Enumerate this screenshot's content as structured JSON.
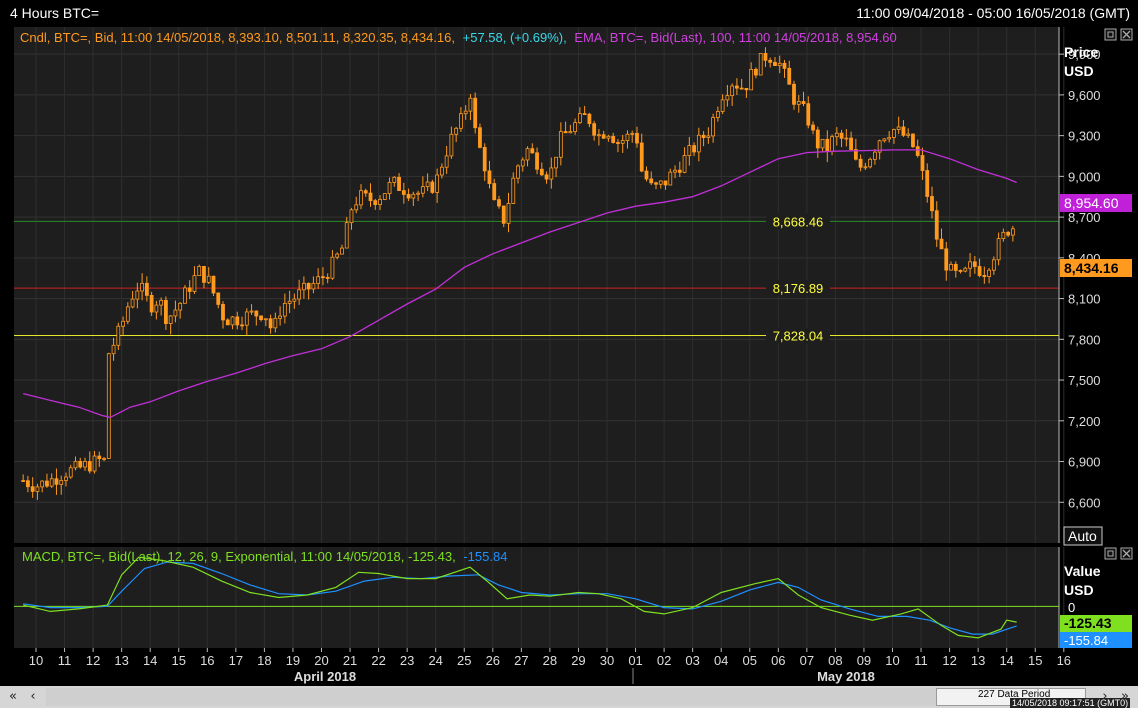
{
  "header": {
    "title": "4 Hours BTC=",
    "range": "11:00 09/04/2018 - 05:00 16/05/2018 (GMT)"
  },
  "price_panel": {
    "legend": {
      "cndl": "Cndl, BTC=, Bid, 11:00 14/05/2018, 8,393.10, 8,501.11, 8,320.35, 8,434.16,",
      "change": "+57.58, (+0.69%),",
      "ema": "EMA, BTC=, Bid(Last),  100, 11:00 14/05/2018, 8,954.60"
    },
    "axis_title": "Price",
    "axis_unit": "USD",
    "auto_button": "Auto",
    "ema_badge": "8,954.60",
    "last_badge": "8,434.16",
    "colors": {
      "candle": "#ff9a1f",
      "ema": "#c030d8",
      "bg": "#1e1e1e",
      "grid": "#3a3a3a"
    }
  },
  "macd_panel": {
    "legend": {
      "text": "MACD, BTC=, Bid(Last),  12, 26, 9, Exponential, 11:00 14/05/2018, -125.43,",
      "signal": "-155.84"
    },
    "axis_title": "Value",
    "axis_unit": "USD",
    "zero_label": "0",
    "macd_badge": "-125.43",
    "signal_badge": "-155.84",
    "colors": {
      "macd": "#7fe020",
      "signal": "#1e90ff"
    }
  },
  "x_axis": {
    "day_labels": [
      "10",
      "11",
      "12",
      "13",
      "14",
      "15",
      "16",
      "17",
      "18",
      "19",
      "20",
      "21",
      "22",
      "23",
      "24",
      "25",
      "26",
      "27",
      "28",
      "29",
      "30",
      "01",
      "02",
      "03",
      "04",
      "05",
      "06",
      "07",
      "08",
      "09",
      "10",
      "11",
      "12",
      "13",
      "14",
      "15",
      "16"
    ],
    "months": [
      "April 2018",
      "May 2018"
    ]
  },
  "scrollbar": {
    "data_period": "227 Data Period",
    "timestamp": "14/05/2018 09:17:51  (GMT0)"
  },
  "chart_data": [
    {
      "type": "candlestick",
      "title": "4 Hours BTC=",
      "ylabel": "Price USD",
      "ylim": [
        6300,
        10100
      ],
      "y_ticks": [
        6600,
        6900,
        7200,
        7500,
        7800,
        8100,
        8400,
        8700,
        9000,
        9300,
        9600,
        9900
      ],
      "y_tick_labels": [
        "6,600",
        "6,900",
        "7,200",
        "7,500",
        "7,800",
        "8,100",
        "8,400",
        "8,700",
        "9,000",
        "9,300",
        "9,600",
        "9,900"
      ],
      "x_dates": [
        "10",
        "11",
        "12",
        "13",
        "14",
        "15",
        "16",
        "17",
        "18",
        "19",
        "20",
        "21",
        "22",
        "23",
        "24",
        "25",
        "26",
        "27",
        "28",
        "29",
        "30",
        "01",
        "02",
        "03",
        "04",
        "05",
        "06",
        "07",
        "08",
        "09",
        "10",
        "11",
        "12",
        "13",
        "14",
        "15",
        "16"
      ],
      "close_path": [
        {
          "d": 9.55,
          "v": 6760
        },
        {
          "d": 10.0,
          "v": 6720
        },
        {
          "d": 10.5,
          "v": 6760
        },
        {
          "d": 11.0,
          "v": 6820
        },
        {
          "d": 11.5,
          "v": 6850
        },
        {
          "d": 12.0,
          "v": 6890
        },
        {
          "d": 12.35,
          "v": 6920
        },
        {
          "d": 12.5,
          "v": 6850
        },
        {
          "d": 12.55,
          "v": 7700
        },
        {
          "d": 12.8,
          "v": 7800
        },
        {
          "d": 13.0,
          "v": 7900
        },
        {
          "d": 13.3,
          "v": 8100
        },
        {
          "d": 13.6,
          "v": 8200
        },
        {
          "d": 14.0,
          "v": 8050
        },
        {
          "d": 14.3,
          "v": 8100
        },
        {
          "d": 14.6,
          "v": 7950
        },
        {
          "d": 15.0,
          "v": 8050
        },
        {
          "d": 15.4,
          "v": 8200
        },
        {
          "d": 15.7,
          "v": 8300
        },
        {
          "d": 16.0,
          "v": 8250
        },
        {
          "d": 16.3,
          "v": 8100
        },
        {
          "d": 16.6,
          "v": 7950
        },
        {
          "d": 17.0,
          "v": 7950
        },
        {
          "d": 17.5,
          "v": 7980
        },
        {
          "d": 18.0,
          "v": 8000
        },
        {
          "d": 18.3,
          "v": 7850
        },
        {
          "d": 18.6,
          "v": 8050
        },
        {
          "d": 19.0,
          "v": 8100
        },
        {
          "d": 19.5,
          "v": 8170
        },
        {
          "d": 20.0,
          "v": 8250
        },
        {
          "d": 20.4,
          "v": 8350
        },
        {
          "d": 20.8,
          "v": 8500
        },
        {
          "d": 21.0,
          "v": 8750
        },
        {
          "d": 21.3,
          "v": 8850
        },
        {
          "d": 21.7,
          "v": 8830
        },
        {
          "d": 22.0,
          "v": 8850
        },
        {
          "d": 22.5,
          "v": 8950
        },
        {
          "d": 23.0,
          "v": 8900
        },
        {
          "d": 23.5,
          "v": 8870
        },
        {
          "d": 24.0,
          "v": 8950
        },
        {
          "d": 24.3,
          "v": 9150
        },
        {
          "d": 24.6,
          "v": 9300
        },
        {
          "d": 25.0,
          "v": 9450
        },
        {
          "d": 25.2,
          "v": 9650
        },
        {
          "d": 25.4,
          "v": 9300
        },
        {
          "d": 25.7,
          "v": 9100
        },
        {
          "d": 26.0,
          "v": 8800
        },
        {
          "d": 26.4,
          "v": 8680
        },
        {
          "d": 26.8,
          "v": 9050
        },
        {
          "d": 27.2,
          "v": 9200
        },
        {
          "d": 27.6,
          "v": 9100
        },
        {
          "d": 28.0,
          "v": 9000
        },
        {
          "d": 28.3,
          "v": 9250
        },
        {
          "d": 28.7,
          "v": 9350
        },
        {
          "d": 29.0,
          "v": 9400
        },
        {
          "d": 29.3,
          "v": 9450
        },
        {
          "d": 29.7,
          "v": 9300
        },
        {
          "d": 30.0,
          "v": 9350
        },
        {
          "d": 30.4,
          "v": 9250
        },
        {
          "d": 30.8,
          "v": 9300
        },
        {
          "d": 31.0,
          "v": 9350
        },
        {
          "d": 31.2,
          "v": 9050
        },
        {
          "d": 31.6,
          "v": 8900
        },
        {
          "d": 32.0,
          "v": 8950
        },
        {
          "d": 32.4,
          "v": 9050
        },
        {
          "d": 32.8,
          "v": 9150
        },
        {
          "d": 33.2,
          "v": 9250
        },
        {
          "d": 33.6,
          "v": 9350
        },
        {
          "d": 34.0,
          "v": 9600
        },
        {
          "d": 34.4,
          "v": 9700
        },
        {
          "d": 34.8,
          "v": 9650
        },
        {
          "d": 35.2,
          "v": 9800
        },
        {
          "d": 35.6,
          "v": 9900
        },
        {
          "d": 36.0,
          "v": 9850
        },
        {
          "d": 36.3,
          "v": 9700
        },
        {
          "d": 36.6,
          "v": 9550
        },
        {
          "d": 37.0,
          "v": 9450
        },
        {
          "d": 37.3,
          "v": 9250
        },
        {
          "d": 37.7,
          "v": 9200
        },
        {
          "d": 38.0,
          "v": 9300
        },
        {
          "d": 38.4,
          "v": 9250
        },
        {
          "d": 38.8,
          "v": 9050
        },
        {
          "d": 39.2,
          "v": 9150
        },
        {
          "d": 39.6,
          "v": 9300
        },
        {
          "d": 40.0,
          "v": 9350
        },
        {
          "d": 40.4,
          "v": 9300
        },
        {
          "d": 40.8,
          "v": 9200
        },
        {
          "d": 41.0,
          "v": 9050
        },
        {
          "d": 41.3,
          "v": 8800
        },
        {
          "d": 41.6,
          "v": 8500
        },
        {
          "d": 42.0,
          "v": 8300
        },
        {
          "d": 42.4,
          "v": 8250
        },
        {
          "d": 42.8,
          "v": 8350
        },
        {
          "d": 43.2,
          "v": 8300
        },
        {
          "d": 43.6,
          "v": 8450
        },
        {
          "d": 44.0,
          "v": 8600
        },
        {
          "d": 44.2,
          "v": 8650
        },
        {
          "d": 44.35,
          "v": 8434
        }
      ],
      "ema_path": [
        {
          "d": 9.55,
          "v": 7400
        },
        {
          "d": 10.5,
          "v": 7350
        },
        {
          "d": 11.5,
          "v": 7300
        },
        {
          "d": 12.3,
          "v": 7240
        },
        {
          "d": 12.6,
          "v": 7225
        },
        {
          "d": 13.3,
          "v": 7300
        },
        {
          "d": 14.0,
          "v": 7340
        },
        {
          "d": 15.0,
          "v": 7420
        },
        {
          "d": 16.0,
          "v": 7490
        },
        {
          "d": 17.0,
          "v": 7550
        },
        {
          "d": 18.0,
          "v": 7620
        },
        {
          "d": 19.0,
          "v": 7680
        },
        {
          "d": 20.0,
          "v": 7730
        },
        {
          "d": 21.0,
          "v": 7820
        },
        {
          "d": 22.0,
          "v": 7940
        },
        {
          "d": 23.0,
          "v": 8060
        },
        {
          "d": 24.0,
          "v": 8170
        },
        {
          "d": 25.0,
          "v": 8330
        },
        {
          "d": 26.0,
          "v": 8430
        },
        {
          "d": 27.0,
          "v": 8510
        },
        {
          "d": 28.0,
          "v": 8590
        },
        {
          "d": 29.0,
          "v": 8660
        },
        {
          "d": 30.0,
          "v": 8730
        },
        {
          "d": 31.0,
          "v": 8780
        },
        {
          "d": 32.0,
          "v": 8810
        },
        {
          "d": 33.0,
          "v": 8850
        },
        {
          "d": 34.0,
          "v": 8930
        },
        {
          "d": 35.0,
          "v": 9030
        },
        {
          "d": 36.0,
          "v": 9130
        },
        {
          "d": 37.0,
          "v": 9175
        },
        {
          "d": 38.0,
          "v": 9185
        },
        {
          "d": 39.0,
          "v": 9190
        },
        {
          "d": 40.0,
          "v": 9195
        },
        {
          "d": 41.0,
          "v": 9195
        },
        {
          "d": 42.0,
          "v": 9130
        },
        {
          "d": 43.0,
          "v": 9050
        },
        {
          "d": 44.0,
          "v": 8985
        },
        {
          "d": 44.35,
          "v": 8955
        }
      ],
      "hlines": [
        {
          "value": 8668.46,
          "label": "8,668.46",
          "color": "#2a8a2a"
        },
        {
          "value": 8176.89,
          "label": "8,176.89",
          "color": "#cc2222"
        },
        {
          "value": 7828.04,
          "label": "7,828.04",
          "color": "#e6e62a"
        }
      ],
      "last_value": 8434.16,
      "ema_last": 8954.6
    },
    {
      "type": "line",
      "title": "MACD, BTC=, Bid(Last), 12, 26, 9, Exponential",
      "ylabel": "Value USD",
      "ylim": [
        -330,
        470
      ],
      "series": [
        {
          "name": "MACD",
          "color": "#7fe020",
          "values": [
            {
              "d": 9.55,
              "v": 10
            },
            {
              "d": 10.5,
              "v": -40
            },
            {
              "d": 11.5,
              "v": -20
            },
            {
              "d": 12.5,
              "v": 10
            },
            {
              "d": 13.0,
              "v": 250
            },
            {
              "d": 13.6,
              "v": 390
            },
            {
              "d": 14.5,
              "v": 360
            },
            {
              "d": 15.5,
              "v": 310
            },
            {
              "d": 16.5,
              "v": 200
            },
            {
              "d": 17.5,
              "v": 110
            },
            {
              "d": 18.5,
              "v": 70
            },
            {
              "d": 19.5,
              "v": 90
            },
            {
              "d": 20.5,
              "v": 150
            },
            {
              "d": 21.3,
              "v": 270
            },
            {
              "d": 22.0,
              "v": 260
            },
            {
              "d": 23.0,
              "v": 220
            },
            {
              "d": 24.0,
              "v": 220
            },
            {
              "d": 25.2,
              "v": 310
            },
            {
              "d": 25.8,
              "v": 200
            },
            {
              "d": 26.5,
              "v": 60
            },
            {
              "d": 27.3,
              "v": 90
            },
            {
              "d": 28.0,
              "v": 80
            },
            {
              "d": 29.0,
              "v": 110
            },
            {
              "d": 29.7,
              "v": 100
            },
            {
              "d": 30.5,
              "v": 60
            },
            {
              "d": 31.3,
              "v": -40
            },
            {
              "d": 32.0,
              "v": -60
            },
            {
              "d": 33.0,
              "v": -10
            },
            {
              "d": 34.0,
              "v": 110
            },
            {
              "d": 35.2,
              "v": 180
            },
            {
              "d": 36.0,
              "v": 220
            },
            {
              "d": 36.7,
              "v": 90
            },
            {
              "d": 37.5,
              "v": -10
            },
            {
              "d": 38.5,
              "v": -70
            },
            {
              "d": 39.3,
              "v": -110
            },
            {
              "d": 40.3,
              "v": -60
            },
            {
              "d": 40.9,
              "v": -20
            },
            {
              "d": 41.7,
              "v": -150
            },
            {
              "d": 42.3,
              "v": -230
            },
            {
              "d": 43.0,
              "v": -250
            },
            {
              "d": 43.8,
              "v": -180
            },
            {
              "d": 44.0,
              "v": -110
            },
            {
              "d": 44.35,
              "v": -125
            }
          ]
        },
        {
          "name": "Signal",
          "color": "#1e90ff",
          "values": [
            {
              "d": 9.55,
              "v": 20
            },
            {
              "d": 10.5,
              "v": -10
            },
            {
              "d": 11.5,
              "v": -10
            },
            {
              "d": 12.5,
              "v": 0
            },
            {
              "d": 13.0,
              "v": 120
            },
            {
              "d": 13.8,
              "v": 300
            },
            {
              "d": 14.6,
              "v": 350
            },
            {
              "d": 15.5,
              "v": 340
            },
            {
              "d": 16.5,
              "v": 260
            },
            {
              "d": 17.5,
              "v": 170
            },
            {
              "d": 18.5,
              "v": 100
            },
            {
              "d": 19.5,
              "v": 90
            },
            {
              "d": 20.5,
              "v": 120
            },
            {
              "d": 21.5,
              "v": 200
            },
            {
              "d": 22.5,
              "v": 230
            },
            {
              "d": 23.5,
              "v": 220
            },
            {
              "d": 24.5,
              "v": 240
            },
            {
              "d": 25.5,
              "v": 250
            },
            {
              "d": 26.2,
              "v": 170
            },
            {
              "d": 27.0,
              "v": 110
            },
            {
              "d": 28.0,
              "v": 90
            },
            {
              "d": 29.0,
              "v": 100
            },
            {
              "d": 30.0,
              "v": 100
            },
            {
              "d": 31.0,
              "v": 60
            },
            {
              "d": 32.0,
              "v": -10
            },
            {
              "d": 33.0,
              "v": -20
            },
            {
              "d": 34.0,
              "v": 40
            },
            {
              "d": 35.0,
              "v": 130
            },
            {
              "d": 36.0,
              "v": 190
            },
            {
              "d": 36.7,
              "v": 150
            },
            {
              "d": 37.5,
              "v": 50
            },
            {
              "d": 38.5,
              "v": -20
            },
            {
              "d": 39.5,
              "v": -80
            },
            {
              "d": 40.5,
              "v": -80
            },
            {
              "d": 41.3,
              "v": -110
            },
            {
              "d": 42.0,
              "v": -170
            },
            {
              "d": 42.8,
              "v": -220
            },
            {
              "d": 43.5,
              "v": -220
            },
            {
              "d": 44.35,
              "v": -155
            }
          ]
        }
      ],
      "zero_line_color": "#7fe020"
    }
  ]
}
